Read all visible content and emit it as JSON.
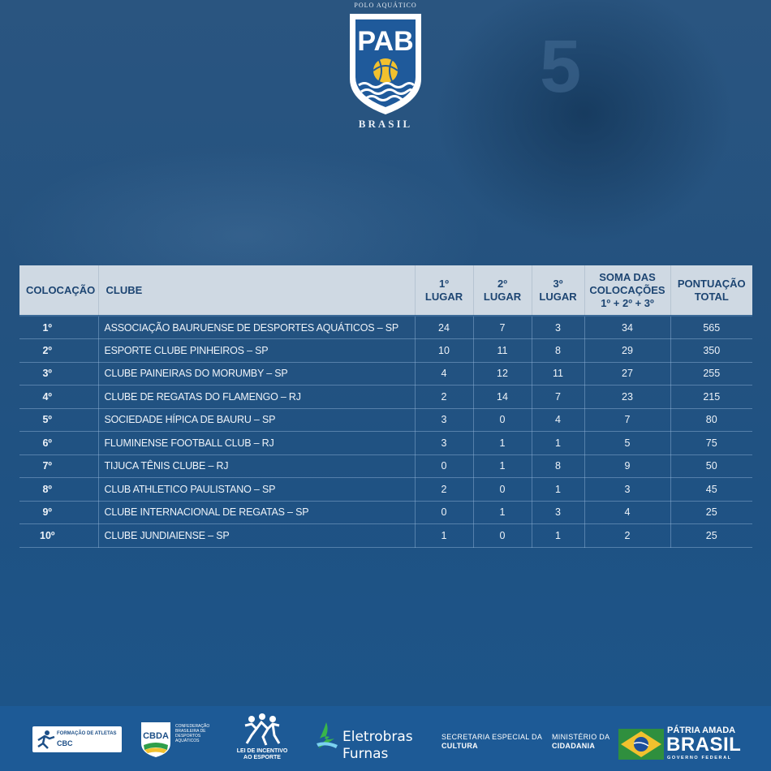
{
  "header": {
    "logo_top": "POLO AQUÁTICO",
    "logo_main": "PAB",
    "logo_bottom": "BRASIL",
    "cap_number": "5"
  },
  "table": {
    "columns": [
      "COLOCAÇÃO",
      "CLUBE",
      "1º\nLUGAR",
      "2º\nLUGAR",
      "3º\nLUGAR",
      "SOMA DAS\nCOLOCAÇÕES\n1º + 2º + 3º",
      "PONTUAÇÃO\nTOTAL"
    ],
    "column_lines": {
      "c1": "COLOCAÇÃO",
      "c2": "CLUBE",
      "c3a": "1º",
      "c3b": "LUGAR",
      "c4a": "2º",
      "c4b": "LUGAR",
      "c5a": "3º",
      "c5b": "LUGAR",
      "c6a": "SOMA DAS",
      "c6b": "COLOCAÇÕES",
      "c6c": "1º + 2º + 3º",
      "c7a": "PONTUAÇÃO",
      "c7b": "TOTAL"
    },
    "rows": [
      {
        "place": "1º",
        "club": "ASSOCIAÇÃO BAURUENSE DE DESPORTES AQUÁTICOS – SP",
        "first": "24",
        "second": "7",
        "third": "3",
        "sum": "34",
        "total": "565"
      },
      {
        "place": "2º",
        "club": "ESPORTE CLUBE PINHEIROS – SP",
        "first": "10",
        "second": "11",
        "third": "8",
        "sum": "29",
        "total": "350"
      },
      {
        "place": "3º",
        "club": "CLUBE PAINEIRAS DO MORUMBY – SP",
        "first": "4",
        "second": "12",
        "third": "11",
        "sum": "27",
        "total": "255"
      },
      {
        "place": "4º",
        "club": "CLUBE DE REGATAS DO FLAMENGO – RJ",
        "first": "2",
        "second": "14",
        "third": "7",
        "sum": "23",
        "total": "215"
      },
      {
        "place": "5º",
        "club": "SOCIEDADE HÍPICA DE BAURU – SP",
        "first": "3",
        "second": "0",
        "third": "4",
        "sum": "7",
        "total": "80"
      },
      {
        "place": "6º",
        "club": "FLUMINENSE FOOTBALL CLUB – RJ",
        "first": "3",
        "second": "1",
        "third": "1",
        "sum": "5",
        "total": "75"
      },
      {
        "place": "7º",
        "club": "TIJUCA TÊNIS CLUBE – RJ",
        "first": "0",
        "second": "1",
        "third": "8",
        "sum": "9",
        "total": "50"
      },
      {
        "place": "8º",
        "club": "CLUB ATHLETICO PAULISTANO – SP",
        "first": "2",
        "second": "0",
        "third": "1",
        "sum": "3",
        "total": "45"
      },
      {
        "place": "9º",
        "club": "CLUBE INTERNACIONAL DE REGATAS – SP",
        "first": "0",
        "second": "1",
        "third": "3",
        "sum": "4",
        "total": "25"
      },
      {
        "place": "10º",
        "club": "CLUBE JUNDIAIENSE – SP",
        "first": "1",
        "second": "0",
        "third": "1",
        "sum": "2",
        "total": "25"
      }
    ]
  },
  "footer": {
    "cbc_line1": "FORMAÇÃO DE ATLETAS",
    "cbc_line2": "CBC",
    "cbda_name": "CBDA",
    "cbda_text": "CONFEDERAÇÃO BRASILEIRA DE DESPORTOS AQUÁTICOS",
    "lie_text": "LEI DE INCENTIVO AO ESPORTE",
    "eletrobras_line1": "Eletrobras",
    "eletrobras_line2": "Furnas",
    "secretaria_line1": "SECRETARIA ESPECIAL DA",
    "secretaria_line2": "CULTURA",
    "ministerio_line1": "MINISTÉRIO DA",
    "ministerio_line2": "CIDADANIA",
    "gov_line1": "PÁTRIA AMADA",
    "gov_line2": "BRASIL",
    "gov_line3": "GOVERNO FEDERAL"
  },
  "colors": {
    "background": "#1f4f7f",
    "header_row": "#cfd9e3",
    "header_text": "#1d4572",
    "footer": "#1d5a96"
  }
}
